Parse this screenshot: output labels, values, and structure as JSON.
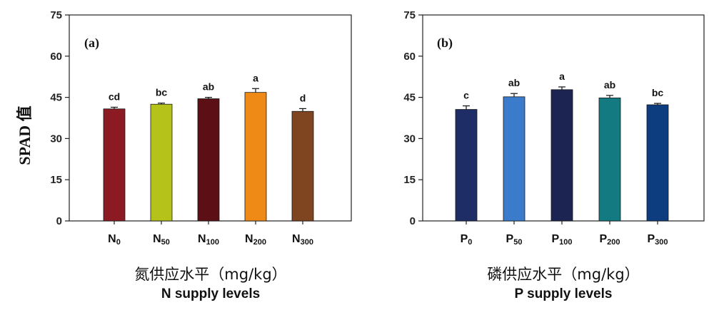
{
  "chart_data": [
    {
      "type": "bar",
      "panel_label": "(a)",
      "ylabel": "SPAD 值",
      "xlabel_cn": "氮供应水平（mg/kg）",
      "xlabel_en": "N supply levels",
      "ylim": [
        0,
        75
      ],
      "yticks": [
        "0",
        "15",
        "30",
        "45",
        "60",
        "75"
      ],
      "categories": [
        {
          "main": "N",
          "sub": "0"
        },
        {
          "main": "N",
          "sub": "50"
        },
        {
          "main": "N",
          "sub": "100"
        },
        {
          "main": "N",
          "sub": "200"
        },
        {
          "main": "N",
          "sub": "300"
        }
      ],
      "values": [
        40.8,
        42.5,
        44.5,
        46.8,
        39.9
      ],
      "errors": [
        0.6,
        0.4,
        0.5,
        1.4,
        1.0
      ],
      "significance": [
        "cd",
        "bc",
        "ab",
        "a",
        "d"
      ],
      "colors": [
        "#8b1a22",
        "#b5c21a",
        "#5c0f14",
        "#f08a16",
        "#7f4420"
      ]
    },
    {
      "type": "bar",
      "panel_label": "(b)",
      "ylabel": "",
      "xlabel_cn": "磷供应水平（mg/kg）",
      "xlabel_en": "P supply levels",
      "ylim": [
        0,
        75
      ],
      "yticks": [
        "0",
        "15",
        "30",
        "45",
        "60",
        "75"
      ],
      "categories": [
        {
          "main": "P",
          "sub": "0"
        },
        {
          "main": "P",
          "sub": "50"
        },
        {
          "main": "P",
          "sub": "100"
        },
        {
          "main": "P",
          "sub": "200"
        },
        {
          "main": "P",
          "sub": "300"
        }
      ],
      "values": [
        40.6,
        45.2,
        47.8,
        44.8,
        42.3
      ],
      "errors": [
        1.3,
        1.2,
        1.0,
        0.9,
        0.5
      ],
      "significance": [
        "c",
        "ab",
        "a",
        "ab",
        "bc"
      ],
      "colors": [
        "#1f2d66",
        "#3b7bcc",
        "#1c2552",
        "#127a80",
        "#0d3d7f"
      ]
    }
  ]
}
